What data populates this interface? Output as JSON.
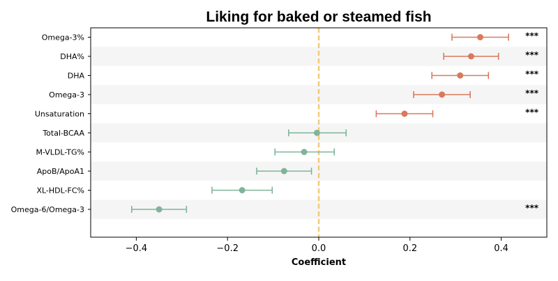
{
  "chart_data": {
    "type": "forest",
    "title": "Liking for baked or steamed fish",
    "xlabel": "Coefficient",
    "xlim": [
      -0.5,
      0.5
    ],
    "xticks": [
      -0.4,
      -0.2,
      0.0,
      0.2,
      0.4
    ],
    "xtick_labels": [
      "−0.4",
      "−0.2",
      "0.0",
      "0.2",
      "0.4"
    ],
    "reference_line": 0.0,
    "grid": false,
    "row_banding": true,
    "colors": {
      "positive": "#d9795d",
      "other": "#7fb49a",
      "reference_line": "#f5c977",
      "band": "#f5f5f5"
    },
    "rows": [
      {
        "label": "Omega-3%",
        "estimate": 0.354,
        "ci_low": 0.292,
        "ci_high": 0.416,
        "significance": "***",
        "group": "positive"
      },
      {
        "label": "DHA%",
        "estimate": 0.334,
        "ci_low": 0.274,
        "ci_high": 0.394,
        "significance": "***",
        "group": "positive"
      },
      {
        "label": "DHA",
        "estimate": 0.31,
        "ci_low": 0.248,
        "ci_high": 0.372,
        "significance": "***",
        "group": "positive"
      },
      {
        "label": "Omega-3",
        "estimate": 0.27,
        "ci_low": 0.208,
        "ci_high": 0.332,
        "significance": "***",
        "group": "positive"
      },
      {
        "label": "Unsaturation",
        "estimate": 0.188,
        "ci_low": 0.126,
        "ci_high": 0.25,
        "significance": "***",
        "group": "positive"
      },
      {
        "label": "Total-BCAA",
        "estimate": -0.004,
        "ci_low": -0.066,
        "ci_high": 0.06,
        "significance": "",
        "group": "other"
      },
      {
        "label": "M-VLDL-TG%",
        "estimate": -0.032,
        "ci_low": -0.096,
        "ci_high": 0.034,
        "significance": "",
        "group": "other"
      },
      {
        "label": "ApoB/ApoA1",
        "estimate": -0.076,
        "ci_low": -0.136,
        "ci_high": -0.016,
        "significance": "",
        "group": "other"
      },
      {
        "label": "XL-HDL-FC%",
        "estimate": -0.168,
        "ci_low": -0.234,
        "ci_high": -0.102,
        "significance": "",
        "group": "other"
      },
      {
        "label": "Omega-6/Omega-3",
        "estimate": -0.35,
        "ci_low": -0.41,
        "ci_high": -0.29,
        "significance": "***",
        "group": "other"
      }
    ]
  }
}
